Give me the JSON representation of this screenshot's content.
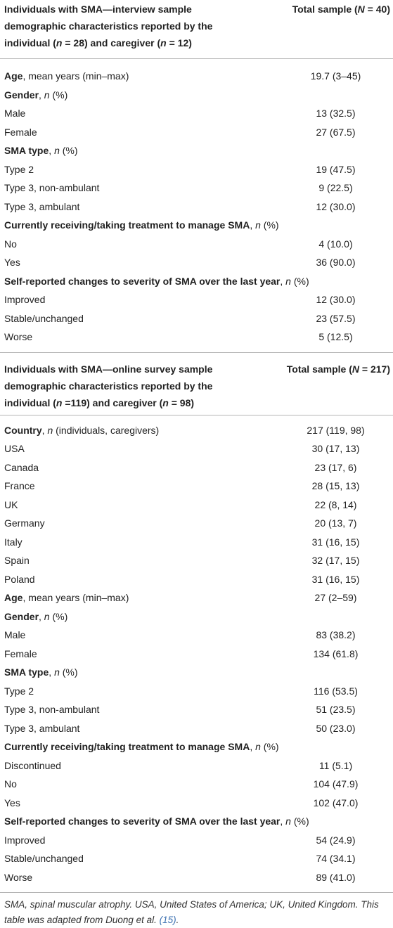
{
  "sections": [
    {
      "header": {
        "label": [
          {
            "text": "Individuals with SMA—interview sample demographic characteristics reported by the individual (",
            "s": "b"
          },
          {
            "text": "n",
            "s": "bi"
          },
          {
            "text": " = 28) and caregiver (",
            "s": "b"
          },
          {
            "text": "n",
            "s": "bi"
          },
          {
            "text": " = 12)",
            "s": "b"
          }
        ],
        "value": [
          {
            "text": "Total sample (",
            "s": "b"
          },
          {
            "text": "N",
            "s": "bi"
          },
          {
            "text": " = 40)",
            "s": "b"
          }
        ]
      },
      "rows": [
        {
          "label": [
            {
              "text": "Age",
              "s": "b"
            },
            {
              "text": ", mean years (min–max)"
            }
          ],
          "value": "19.7 (3–45)"
        },
        {
          "label": [
            {
              "text": "Gender",
              "s": "b"
            },
            {
              "text": ", "
            },
            {
              "text": "n",
              "s": "i"
            },
            {
              "text": " (%)"
            }
          ]
        },
        {
          "label": "Male",
          "value": "13 (32.5)"
        },
        {
          "label": "Female",
          "value": "27 (67.5)"
        },
        {
          "label": [
            {
              "text": "SMA type",
              "s": "b"
            },
            {
              "text": ", "
            },
            {
              "text": "n",
              "s": "i"
            },
            {
              "text": " (%)"
            }
          ]
        },
        {
          "label": "Type 2",
          "value": "19 (47.5)"
        },
        {
          "label": "Type 3, non-ambulant",
          "value": "9 (22.5)"
        },
        {
          "label": "Type 3, ambulant",
          "value": "12 (30.0)"
        },
        {
          "label": [
            {
              "text": "Currently receiving/taking treatment to manage SMA",
              "s": "b"
            },
            {
              "text": ", "
            },
            {
              "text": "n",
              "s": "i"
            },
            {
              "text": " (%)"
            }
          ]
        },
        {
          "label": "No",
          "value": "4 (10.0)"
        },
        {
          "label": "Yes",
          "value": "36 (90.0)"
        },
        {
          "label": [
            {
              "text": "Self-reported changes to severity of SMA over the last year",
              "s": "b"
            },
            {
              "text": ", "
            },
            {
              "text": "n",
              "s": "i"
            },
            {
              "text": " (%)"
            }
          ]
        },
        {
          "label": "Improved",
          "value": "12 (30.0)"
        },
        {
          "label": "Stable/unchanged",
          "value": "23 (57.5)"
        },
        {
          "label": "Worse",
          "value": "5 (12.5)"
        }
      ]
    },
    {
      "header": {
        "label": [
          {
            "text": "Individuals with SMA—online survey sample demographic characteristics reported by the individual (",
            "s": "b"
          },
          {
            "text": "n",
            "s": "bi"
          },
          {
            "text": " =119) and caregiver (",
            "s": "b"
          },
          {
            "text": "n",
            "s": "bi"
          },
          {
            "text": " = 98)",
            "s": "b"
          }
        ],
        "value": [
          {
            "text": "Total sample (",
            "s": "b"
          },
          {
            "text": "N",
            "s": "bi"
          },
          {
            "text": " = 217)",
            "s": "b"
          }
        ]
      },
      "rows": [
        {
          "label": [
            {
              "text": "Country",
              "s": "b"
            },
            {
              "text": ", "
            },
            {
              "text": "n",
              "s": "i"
            },
            {
              "text": " (individuals, caregivers)"
            }
          ],
          "value": "217 (119, 98)"
        },
        {
          "label": "USA",
          "value": "30 (17, 13)"
        },
        {
          "label": "Canada",
          "value": "23 (17, 6)"
        },
        {
          "label": "France",
          "value": "28 (15, 13)"
        },
        {
          "label": "UK",
          "value": "22 (8, 14)"
        },
        {
          "label": "Germany",
          "value": "20 (13, 7)"
        },
        {
          "label": "Italy",
          "value": "31 (16, 15)"
        },
        {
          "label": "Spain",
          "value": "32 (17, 15)"
        },
        {
          "label": "Poland",
          "value": "31 (16, 15)"
        },
        {
          "label": [
            {
              "text": "Age",
              "s": "b"
            },
            {
              "text": ", mean years (min–max)"
            }
          ],
          "value": "27 (2–59)"
        },
        {
          "label": [
            {
              "text": "Gender",
              "s": "b"
            },
            {
              "text": ", "
            },
            {
              "text": "n",
              "s": "i"
            },
            {
              "text": " (%)"
            }
          ]
        },
        {
          "label": "Male",
          "value": "83 (38.2)"
        },
        {
          "label": "Female",
          "value": "134 (61.8)"
        },
        {
          "label": [
            {
              "text": "SMA type",
              "s": "b"
            },
            {
              "text": ", "
            },
            {
              "text": "n",
              "s": "i"
            },
            {
              "text": " (%)"
            }
          ]
        },
        {
          "label": "Type 2",
          "value": "116 (53.5)"
        },
        {
          "label": "Type 3, non-ambulant",
          "value": "51 (23.5)"
        },
        {
          "label": "Type 3, ambulant",
          "value": "50 (23.0)"
        },
        {
          "label": [
            {
              "text": "Currently receiving/taking treatment to manage SMA",
              "s": "b"
            },
            {
              "text": ", "
            },
            {
              "text": "n",
              "s": "i"
            },
            {
              "text": " (%)"
            }
          ]
        },
        {
          "label": "Discontinued",
          "value": "11 (5.1)"
        },
        {
          "label": "No",
          "value": "104 (47.9)"
        },
        {
          "label": "Yes",
          "value": "102 (47.0)"
        },
        {
          "label": [
            {
              "text": "Self-reported changes to severity of SMA over the last year",
              "s": "b"
            },
            {
              "text": ", "
            },
            {
              "text": "n",
              "s": "i"
            },
            {
              "text": " (%)"
            }
          ]
        },
        {
          "label": "Improved",
          "value": "54 (24.9)"
        },
        {
          "label": "Stable/unchanged",
          "value": "74 (34.1)"
        },
        {
          "label": "Worse",
          "value": "89 (41.0)"
        }
      ]
    }
  ],
  "footnote": [
    {
      "text": "SMA, spinal muscular atrophy. USA, United States of America; UK, United Kingdom. This table was adapted from Duong et al. ",
      "s": "i"
    },
    {
      "text": "(15)",
      "s": "i-link"
    },
    {
      "text": ".",
      "s": "i"
    }
  ]
}
